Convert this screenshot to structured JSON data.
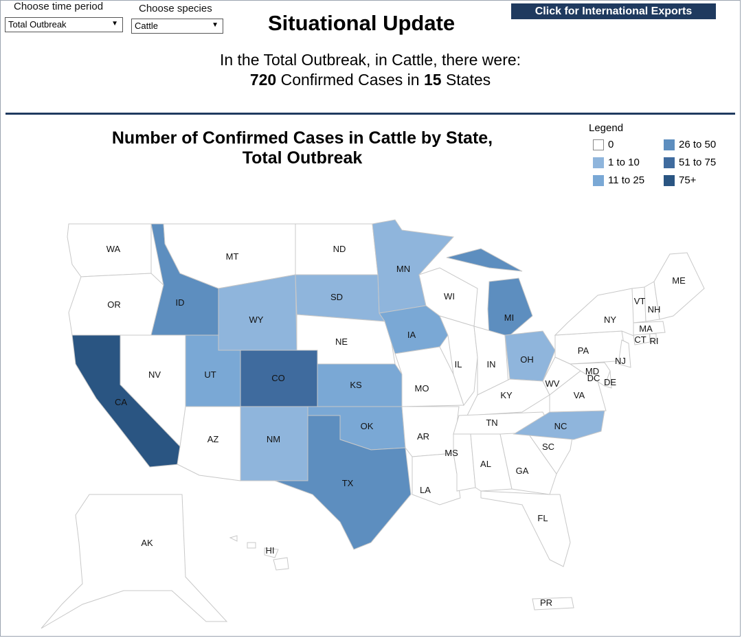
{
  "filters": {
    "time_period": {
      "label": "Choose time period",
      "value": "Total Outbreak"
    },
    "species": {
      "label": "Choose species",
      "value": "Cattle"
    }
  },
  "header": {
    "title": "Situational Update",
    "exports_button": "Click for International Exports"
  },
  "summary": {
    "line1": "In the Total Outbreak, in Cattle, there were:",
    "cases": "720",
    "cases_text": "Confirmed Cases in",
    "states": "15",
    "states_text": "States"
  },
  "map": {
    "title_line1": "Number of Confirmed Cases in Cattle by State,",
    "title_line2": "Total Outbreak",
    "legend": {
      "title": "Legend",
      "items": [
        {
          "label": "0",
          "color": "#ffffff"
        },
        {
          "label": "1 to 10",
          "color": "#8fb5dc"
        },
        {
          "label": "11 to 25",
          "color": "#7aa8d5"
        },
        {
          "label": "26 to 50",
          "color": "#5d8ebf"
        },
        {
          "label": "51 to 75",
          "color": "#3f6b9e"
        },
        {
          "label": "75+",
          "color": "#2a5582"
        }
      ]
    },
    "colors": {
      "zero": "#ffffff",
      "c1_10": "#8fb5dc",
      "c11_25": "#7aa8d5",
      "c26_50": "#5d8ebf",
      "c51_75": "#3f6b9e",
      "c75p": "#2a5582",
      "border": "#c8c8c8"
    },
    "states": [
      {
        "abbr": "WA",
        "bin": "0"
      },
      {
        "abbr": "OR",
        "bin": "0"
      },
      {
        "abbr": "CA",
        "bin": "75+"
      },
      {
        "abbr": "NV",
        "bin": "0"
      },
      {
        "abbr": "ID",
        "bin": "26 to 50"
      },
      {
        "abbr": "MT",
        "bin": "0"
      },
      {
        "abbr": "WY",
        "bin": "1 to 10"
      },
      {
        "abbr": "UT",
        "bin": "11 to 25"
      },
      {
        "abbr": "AZ",
        "bin": "0"
      },
      {
        "abbr": "CO",
        "bin": "51 to 75"
      },
      {
        "abbr": "NM",
        "bin": "1 to 10"
      },
      {
        "abbr": "ND",
        "bin": "0"
      },
      {
        "abbr": "SD",
        "bin": "1 to 10"
      },
      {
        "abbr": "NE",
        "bin": "0"
      },
      {
        "abbr": "KS",
        "bin": "11 to 25"
      },
      {
        "abbr": "OK",
        "bin": "11 to 25"
      },
      {
        "abbr": "TX",
        "bin": "26 to 50"
      },
      {
        "abbr": "MN",
        "bin": "1 to 10"
      },
      {
        "abbr": "IA",
        "bin": "11 to 25"
      },
      {
        "abbr": "MO",
        "bin": "0"
      },
      {
        "abbr": "AR",
        "bin": "0"
      },
      {
        "abbr": "LA",
        "bin": "0"
      },
      {
        "abbr": "WI",
        "bin": "0"
      },
      {
        "abbr": "IL",
        "bin": "0"
      },
      {
        "abbr": "MI",
        "bin": "26 to 50"
      },
      {
        "abbr": "IN",
        "bin": "0"
      },
      {
        "abbr": "OH",
        "bin": "1 to 10"
      },
      {
        "abbr": "KY",
        "bin": "0"
      },
      {
        "abbr": "TN",
        "bin": "0"
      },
      {
        "abbr": "MS",
        "bin": "0"
      },
      {
        "abbr": "AL",
        "bin": "0"
      },
      {
        "abbr": "GA",
        "bin": "0"
      },
      {
        "abbr": "FL",
        "bin": "0"
      },
      {
        "abbr": "SC",
        "bin": "0"
      },
      {
        "abbr": "NC",
        "bin": "1 to 10"
      },
      {
        "abbr": "VA",
        "bin": "0"
      },
      {
        "abbr": "WV",
        "bin": "0"
      },
      {
        "abbr": "PA",
        "bin": "0"
      },
      {
        "abbr": "NY",
        "bin": "0"
      },
      {
        "abbr": "NJ",
        "bin": "0"
      },
      {
        "abbr": "DE",
        "bin": "0"
      },
      {
        "abbr": "MD",
        "bin": "0"
      },
      {
        "abbr": "DC",
        "bin": "0"
      },
      {
        "abbr": "CT",
        "bin": "0"
      },
      {
        "abbr": "RI",
        "bin": "0"
      },
      {
        "abbr": "MA",
        "bin": "0"
      },
      {
        "abbr": "VT",
        "bin": "0"
      },
      {
        "abbr": "NH",
        "bin": "0"
      },
      {
        "abbr": "ME",
        "bin": "0"
      },
      {
        "abbr": "AK",
        "bin": "0"
      },
      {
        "abbr": "HI",
        "bin": "0"
      },
      {
        "abbr": "PR",
        "bin": "0"
      }
    ]
  }
}
